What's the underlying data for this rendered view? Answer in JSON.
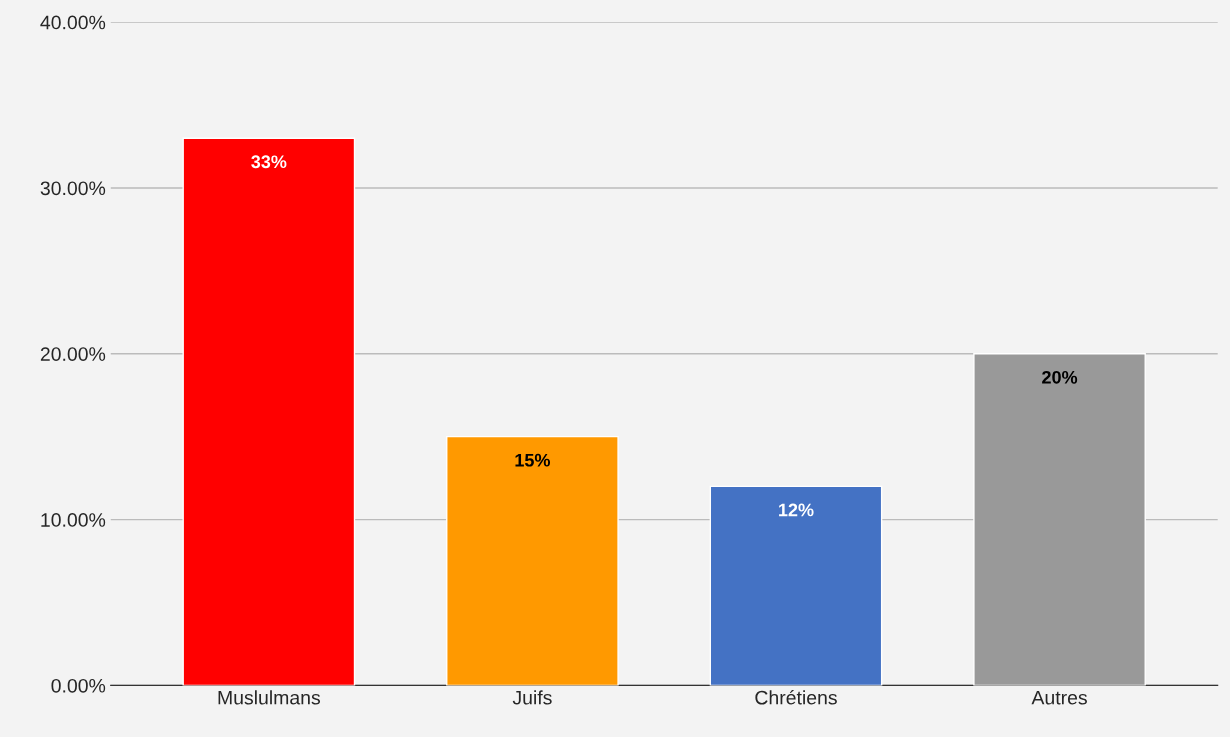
{
  "chart_data": {
    "type": "bar",
    "categories": [
      "Muslulmans",
      "Juifs",
      "Chrétiens",
      "Autres"
    ],
    "values": [
      33,
      15,
      12,
      20
    ],
    "colors": [
      "#ff0000",
      "#ff9900",
      "#4472c4",
      "#999999"
    ],
    "value_labels": [
      "33%",
      "15%",
      "12%",
      "20%"
    ],
    "ylim": [
      0,
      40
    ],
    "yticks": [
      {
        "value": 0,
        "label": "0.00%"
      },
      {
        "value": 10,
        "label": "10.00%"
      },
      {
        "value": 20,
        "label": "20.00%"
      },
      {
        "value": 30,
        "label": "30.00%"
      },
      {
        "value": 40,
        "label": "40.00%"
      }
    ],
    "grid": "y",
    "legend": false
  }
}
